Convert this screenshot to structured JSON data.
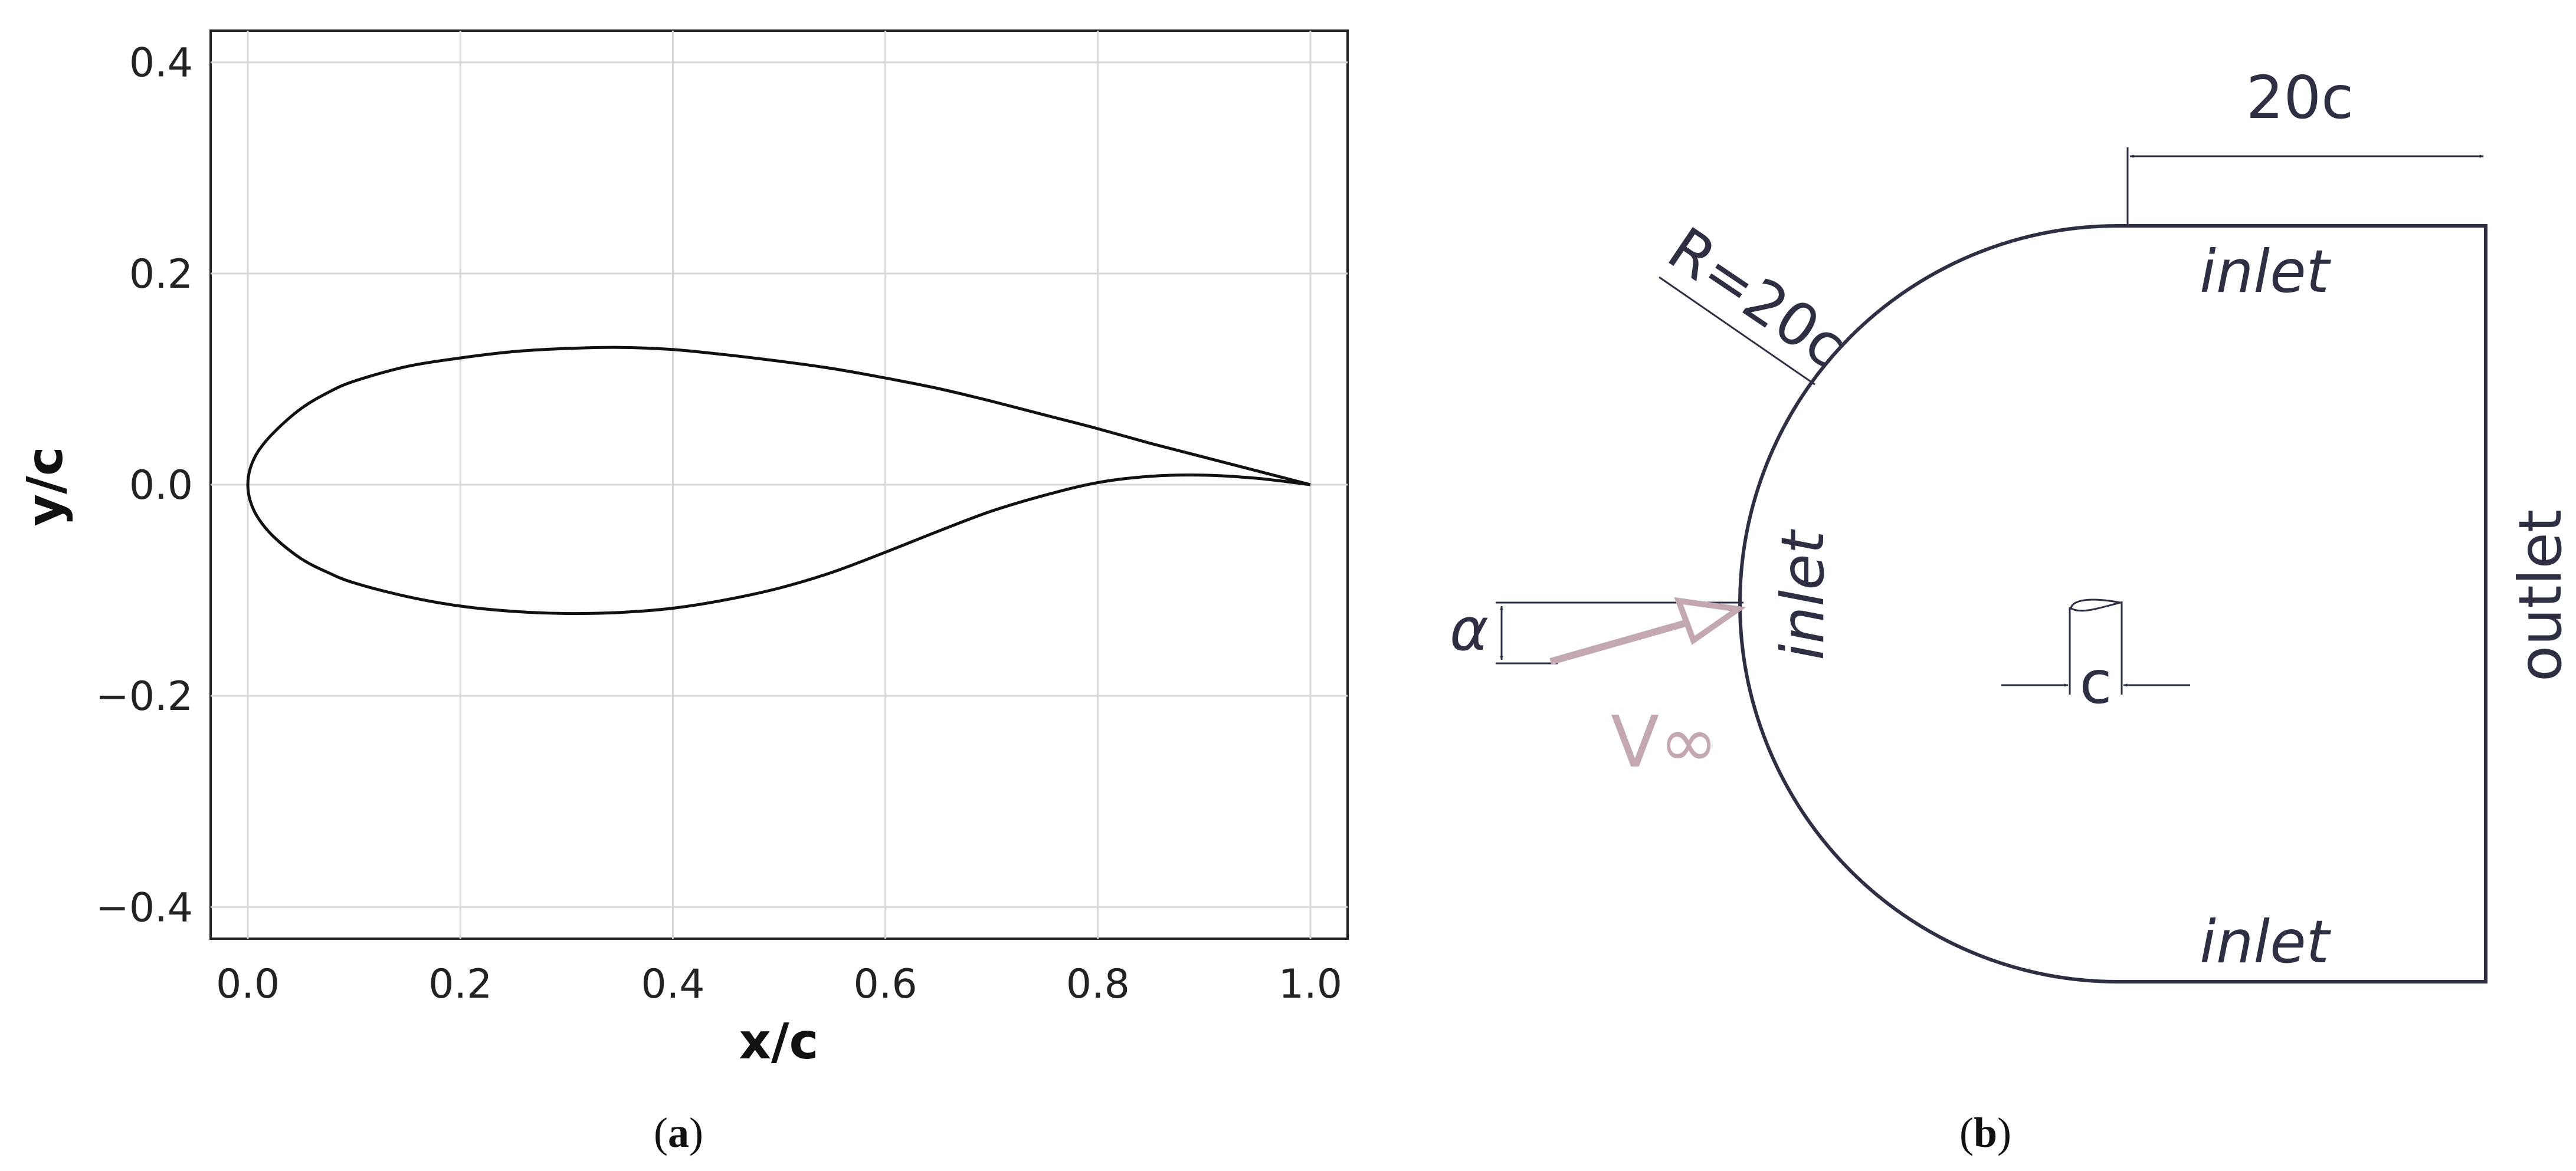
{
  "panel_a": {
    "label_open": "(",
    "label_letter": "a",
    "label_close": ")",
    "chart_data": {
      "type": "line",
      "title": "",
      "xlabel": "x/c",
      "ylabel": "y/c",
      "xlim": [
        -0.035,
        1.035
      ],
      "ylim": [
        -0.43,
        0.43
      ],
      "x_ticks": [
        0.0,
        0.2,
        0.4,
        0.6,
        0.8,
        1.0
      ],
      "x_tick_labels": [
        "0.0",
        "0.2",
        "0.4",
        "0.6",
        "0.8",
        "1.0"
      ],
      "y_ticks": [
        0.4,
        0.2,
        0.0,
        -0.2,
        -0.4
      ],
      "y_tick_labels": [
        "0.4",
        "0.2",
        "0.0",
        "−0.2",
        "−0.4"
      ],
      "grid": true,
      "legend": "none",
      "line_color": "#111111",
      "series": [
        {
          "x": [
            0.0,
            0.0025,
            0.01,
            0.025,
            0.05,
            0.075,
            0.1,
            0.15,
            0.2,
            0.25,
            0.3,
            0.35,
            0.4,
            0.45,
            0.5,
            0.55,
            0.6,
            0.65,
            0.7,
            0.75,
            0.8,
            0.85,
            0.9,
            0.95,
            1.0
          ],
          "y": [
            0.0,
            0.016,
            0.032,
            0.05,
            0.072,
            0.087,
            0.098,
            0.112,
            0.12,
            0.126,
            0.129,
            0.13,
            0.128,
            0.123,
            0.117,
            0.11,
            0.101,
            0.091,
            0.079,
            0.066,
            0.053,
            0.039,
            0.026,
            0.013,
            0.0
          ]
        },
        {
          "x": [
            0.0,
            0.0025,
            0.01,
            0.025,
            0.05,
            0.075,
            0.1,
            0.15,
            0.2,
            0.25,
            0.3,
            0.35,
            0.4,
            0.45,
            0.5,
            0.55,
            0.6,
            0.65,
            0.7,
            0.75,
            0.8,
            0.85,
            0.9,
            0.95,
            1.0
          ],
          "y": [
            0.0,
            -0.016,
            -0.032,
            -0.05,
            -0.07,
            -0.083,
            -0.093,
            -0.106,
            -0.115,
            -0.12,
            -0.122,
            -0.121,
            -0.117,
            -0.109,
            -0.098,
            -0.083,
            -0.064,
            -0.044,
            -0.025,
            -0.01,
            0.002,
            0.008,
            0.009,
            0.006,
            0.0
          ]
        }
      ]
    }
  },
  "panel_b": {
    "label_open": "(",
    "label_letter": "b",
    "label_close": ")",
    "dimension_width": "20c",
    "dimension_radius": "R=20c",
    "inlet_top": "inlet",
    "inlet_left": "inlet",
    "inlet_bottom": "inlet",
    "outlet": "outlet",
    "chord": "c",
    "angle_symbol": "α",
    "velocity_symbol": "V∞",
    "colors": {
      "domain_line": "#2f2f44",
      "velocity_arrow": "#c4a8b1"
    }
  }
}
